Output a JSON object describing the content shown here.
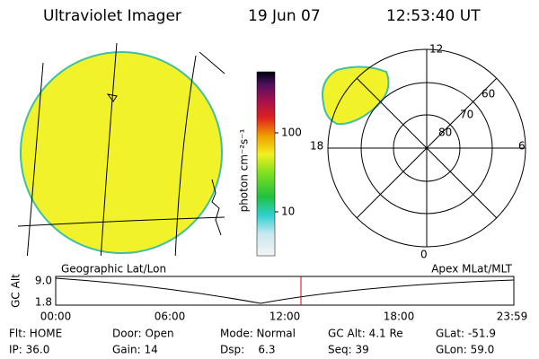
{
  "header": {
    "title": "Ultraviolet Imager",
    "date": "19 Jun 07",
    "time": "12:53:40 UT"
  },
  "colorbar": {
    "label": "photon cm⁻²s⁻¹",
    "ticks": [
      "100",
      "10"
    ]
  },
  "polar": {
    "mlt_labels": [
      "12",
      "18",
      "6",
      "0"
    ],
    "lat_labels": [
      "80",
      "70",
      "60"
    ]
  },
  "plot": {
    "left_title": "Geographic Lat/Lon",
    "right_title": "Apex MLat/MLT",
    "y_label": "GC Alt",
    "y_ticks": [
      "9.0",
      "1.8"
    ],
    "x_ticks": [
      "00:00",
      "06:00",
      "12:00",
      "18:00",
      "23:59"
    ]
  },
  "footer": {
    "rows": [
      [
        "Flt: HOME",
        "Door: Open",
        "Mode: Normal",
        "GC Alt: 4.1 Re",
        "GLat: -51.9"
      ],
      [
        "IP: 36.0",
        "Gain: 14",
        "Dsp:    6.3",
        "Seq: 39",
        "GLon: 59.0"
      ]
    ]
  }
}
